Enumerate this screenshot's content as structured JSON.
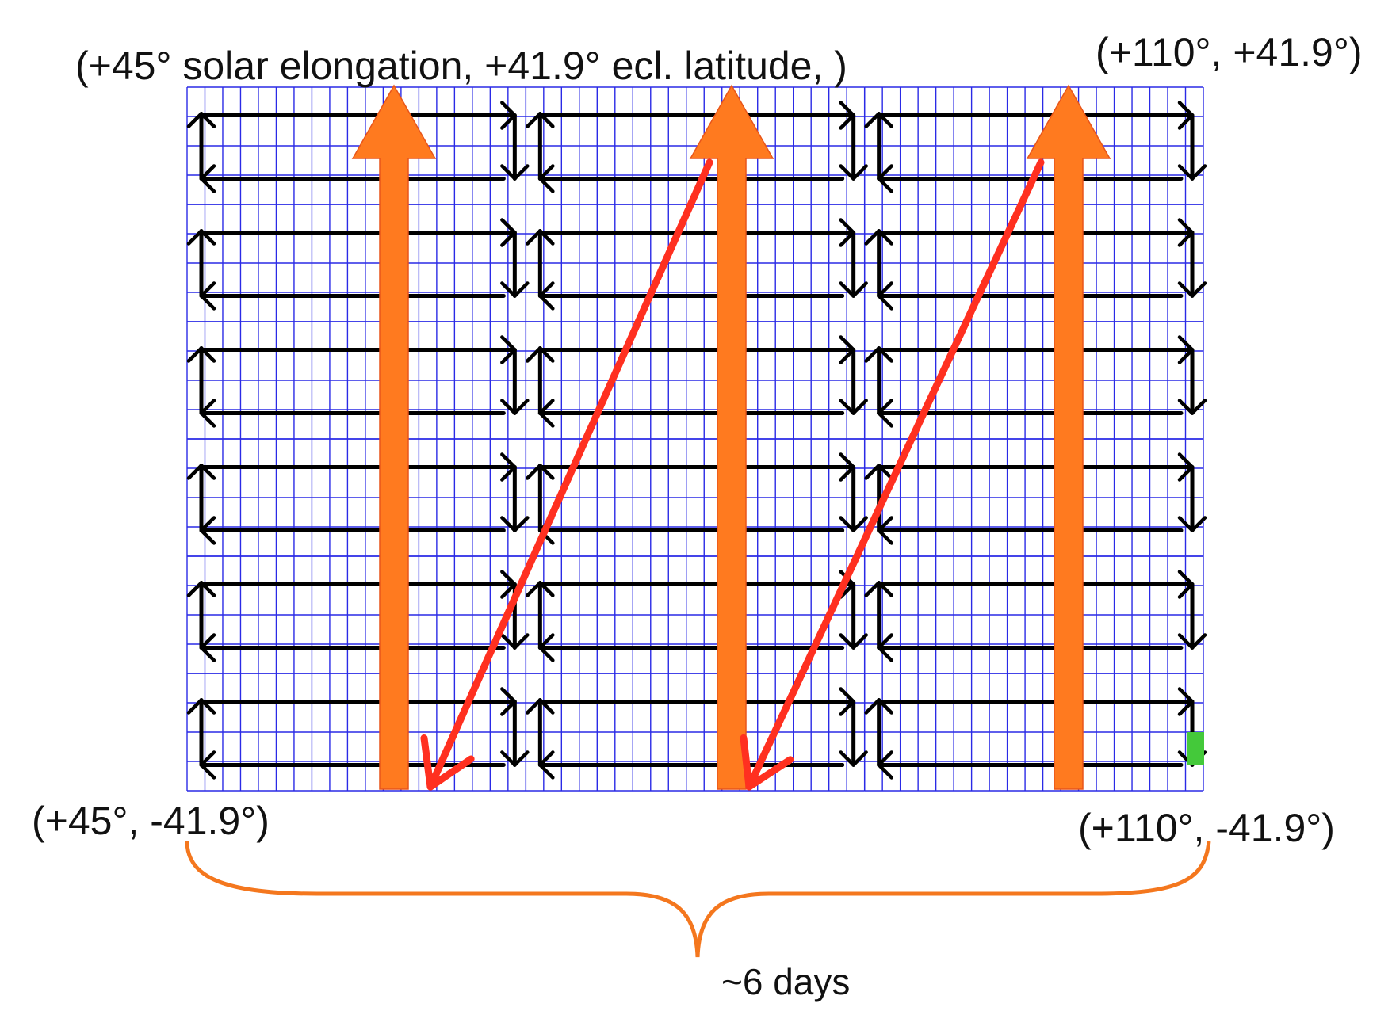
{
  "labels": {
    "top_left": "(+45° solar elongation, +41.9° ecl. latitude, )",
    "top_right": "(+110°, +41.9°)",
    "bottom_left": "(+45°, -41.9°)",
    "bottom_right": "(+110°, -41.9°)",
    "duration": "~6 days"
  },
  "grid": {
    "columns": 3,
    "rows": 6,
    "cells_per_block_horizontal": 19,
    "cells_per_block_vertical": 4
  },
  "colors": {
    "grid_line": "#2a2ae6",
    "scan_arrow": "#000000",
    "orange_arrow": "#ff7a1f",
    "red_arrow": "#ff3020",
    "brace": "#f4771e",
    "end_marker": "#44c93a"
  }
}
